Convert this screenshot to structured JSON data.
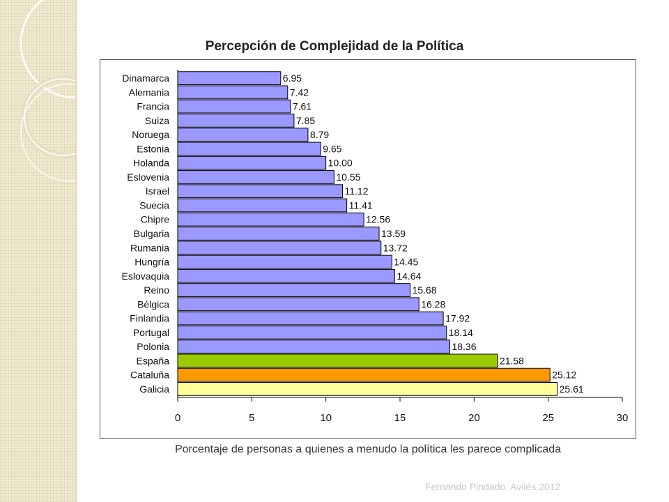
{
  "chart_data": {
    "type": "bar",
    "orientation": "horizontal",
    "title": "Percepción de Complejidad de la Política",
    "xlabel": "Porcentaje de personas a quienes a menudo la política les parece complicada",
    "ylabel": "",
    "xlim": [
      0,
      30
    ],
    "xticks": [
      0,
      5,
      10,
      15,
      20,
      25,
      30
    ],
    "grid": false,
    "categories": [
      "Dinamarca",
      "Alemania",
      "Francia",
      "Suiza",
      "Noruega",
      "Estonia",
      "Holanda",
      "Eslovenia",
      "Israel",
      "Suecia",
      "Chipre",
      "Bulgaria",
      "Rumania",
      "Hungría",
      "Eslovaquia",
      "Reino",
      "Bélgica",
      "Finlandia",
      "Portugal",
      "Polonia",
      "España",
      "Cataluña",
      "Galicia"
    ],
    "values": [
      6.95,
      7.42,
      7.61,
      7.85,
      8.79,
      9.65,
      10.0,
      10.55,
      11.12,
      11.41,
      12.56,
      13.59,
      13.72,
      14.45,
      14.64,
      15.68,
      16.28,
      17.92,
      18.14,
      18.36,
      21.58,
      25.12,
      25.61
    ],
    "value_labels": [
      "6.95",
      "7.42",
      "7.61",
      "7.85",
      "8.79",
      "9.65",
      "10.00",
      "10.55",
      "11.12",
      "11.41",
      "12.56",
      "13.59",
      "13.72",
      "14.45",
      "14.64",
      "15.68",
      "16.28",
      "17.92",
      "18.14",
      "18.36",
      "21.58",
      "25.12",
      "25.61"
    ],
    "colors": {
      "default": "#9999ff",
      "España": "#99cc00",
      "Cataluña": "#ff9900",
      "Galicia": "#ffff99"
    }
  },
  "footer": {
    "credit": "Fernando Pindado. Avilés 2012"
  }
}
